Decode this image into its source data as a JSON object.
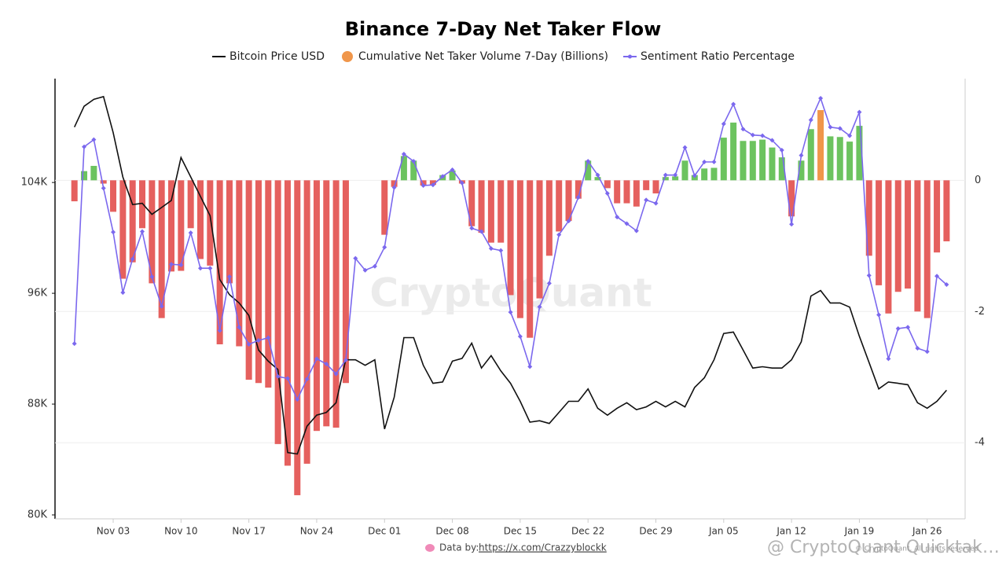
{
  "chart_data": {
    "type": "combo",
    "title": "Binance 7-Day Net Taker Flow",
    "watermark": "CryptoQuant",
    "source_label": "Data by:",
    "source_link": "https://x.com/Crazzyblockk",
    "copyright": "© CryptoQuant. All rights reserved",
    "overlay_watermark": "@ CryptoQuant Quicktak…",
    "categories": [
      null,
      null,
      null,
      null,
      "Nov 03",
      null,
      null,
      null,
      null,
      null,
      null,
      "Nov 10",
      null,
      null,
      null,
      null,
      null,
      null,
      "Nov 17",
      null,
      null,
      null,
      null,
      null,
      null,
      "Nov 24",
      null,
      null,
      null,
      null,
      null,
      null,
      "Dec 01",
      null,
      null,
      null,
      null,
      null,
      null,
      "Dec 08",
      null,
      null,
      null,
      null,
      null,
      null,
      "Dec 15",
      null,
      null,
      null,
      null,
      null,
      null,
      "Dec 22",
      null,
      null,
      null,
      null,
      null,
      null,
      "Dec 29",
      null,
      null,
      null,
      null,
      null,
      null,
      "Jan 05",
      null,
      null,
      null,
      null,
      null,
      null,
      "Jan 12",
      null,
      null,
      null,
      null,
      null,
      null,
      "Jan 19",
      null,
      null,
      null,
      null,
      null,
      null,
      "Jan 26",
      null,
      null
    ],
    "ylim": [
      80000,
      111500
    ],
    "yticks": [
      {
        "value": 80000,
        "label": "80K"
      },
      {
        "value": 88000,
        "label": "88K"
      },
      {
        "value": 96000,
        "label": "96K"
      },
      {
        "value": 104000,
        "label": "104K"
      }
    ],
    "y2lim": [
      -5.1,
      1.55
    ],
    "y2ticks": [
      -4,
      -2,
      0
    ],
    "grid": true,
    "legend": "top",
    "series": [
      {
        "name": "Bitcoin Price USD",
        "type": "line",
        "axis": "y",
        "color": "#111111",
        "values": [
          108000,
          109500,
          110000,
          110200,
          107600,
          104400,
          102400,
          102500,
          101700,
          102200,
          102700,
          105800,
          104400,
          103000,
          101600,
          97000,
          95900,
          95300,
          94400,
          91900,
          91100,
          90500,
          84500,
          84400,
          86400,
          87200,
          87400,
          88100,
          91200,
          91200,
          90800,
          91200,
          86200,
          88500,
          92800,
          92800,
          90800,
          89500,
          89600,
          91100,
          91300,
          92400,
          90600,
          91500,
          90400,
          89500,
          88200,
          86700,
          86800,
          86600,
          87400,
          88200,
          88200,
          89100,
          87700,
          87200,
          87700,
          88100,
          87600,
          87800,
          88200,
          87800,
          88200,
          87800,
          89200,
          89900,
          91200,
          93100,
          93200,
          91900,
          90600,
          90700,
          90600,
          90600,
          91200,
          92500,
          95800,
          96200,
          95300,
          95300,
          95000,
          92900,
          91000,
          89100,
          89600,
          89500,
          89400,
          88100,
          87700,
          88200,
          89000
        ]
      },
      {
        "name": "Cumulative Net Taker Volume 7-Day (Billions)",
        "type": "bar",
        "axis": "y2",
        "color": "#f0964a",
        "positive_color": "#6cc35f",
        "negative_color": "#e5605e",
        "values": [
          -0.32,
          0.14,
          0.22,
          -0.05,
          -0.48,
          -1.5,
          -1.25,
          -0.73,
          -1.57,
          -2.1,
          -1.39,
          -1.38,
          -0.73,
          -1.2,
          -1.3,
          -2.5,
          -1.57,
          -2.53,
          -3.04,
          -3.09,
          -3.16,
          -4.02,
          -4.35,
          -4.8,
          -4.32,
          -3.82,
          -3.75,
          -3.77,
          -3.09,
          null,
          null,
          null,
          -0.83,
          -0.1,
          0.37,
          0.3,
          -0.08,
          -0.07,
          0.08,
          0.15,
          -0.05,
          -0.7,
          -0.8,
          -0.95,
          -0.95,
          -1.75,
          -2.1,
          -2.4,
          -1.8,
          -1.15,
          -0.78,
          -0.62,
          -0.28,
          0.3,
          0.05,
          -0.12,
          -0.35,
          -0.35,
          -0.4,
          -0.15,
          -0.2,
          0.05,
          0.06,
          0.3,
          0.08,
          0.18,
          0.19,
          0.65,
          0.88,
          0.6,
          0.6,
          0.62,
          0.5,
          0.35,
          -0.55,
          0.3,
          0.78,
          1.07,
          0.67,
          0.66,
          0.59,
          0.83,
          -1.15,
          -1.6,
          -2.03,
          -1.7,
          -1.65,
          -2.0,
          -2.1,
          -1.1,
          -0.93
        ]
      },
      {
        "name": "Sentiment Ratio Percentage",
        "type": "line",
        "axis": "y2",
        "color": "#7b68ee",
        "marker": true,
        "values": [
          -2.49,
          0.51,
          0.62,
          -0.12,
          -0.79,
          -1.71,
          -1.2,
          -0.78,
          -1.47,
          -1.92,
          -1.28,
          -1.29,
          -0.8,
          -1.34,
          -1.34,
          -2.29,
          -1.47,
          -2.24,
          -2.5,
          -2.44,
          -2.4,
          -2.99,
          -3.02,
          -3.34,
          -3.03,
          -2.72,
          -2.8,
          -2.95,
          -2.74,
          -1.19,
          -1.37,
          -1.31,
          -1.02,
          -0.11,
          0.4,
          0.29,
          -0.08,
          -0.07,
          0.06,
          0.16,
          -0.04,
          -0.73,
          -0.78,
          -1.04,
          -1.07,
          -2.01,
          -2.38,
          -2.84,
          -1.93,
          -1.57,
          -0.83,
          -0.62,
          -0.26,
          0.29,
          0.08,
          -0.2,
          -0.56,
          -0.66,
          -0.77,
          -0.3,
          -0.35,
          0.08,
          0.08,
          0.5,
          0.07,
          0.28,
          0.28,
          0.86,
          1.16,
          0.78,
          0.69,
          0.68,
          0.61,
          0.46,
          -0.67,
          0.38,
          0.92,
          1.25,
          0.81,
          0.79,
          0.68,
          1.04,
          -1.45,
          -2.05,
          -2.72,
          -2.26,
          -2.24,
          -2.56,
          -2.61,
          -1.46,
          -1.59
        ]
      }
    ]
  }
}
